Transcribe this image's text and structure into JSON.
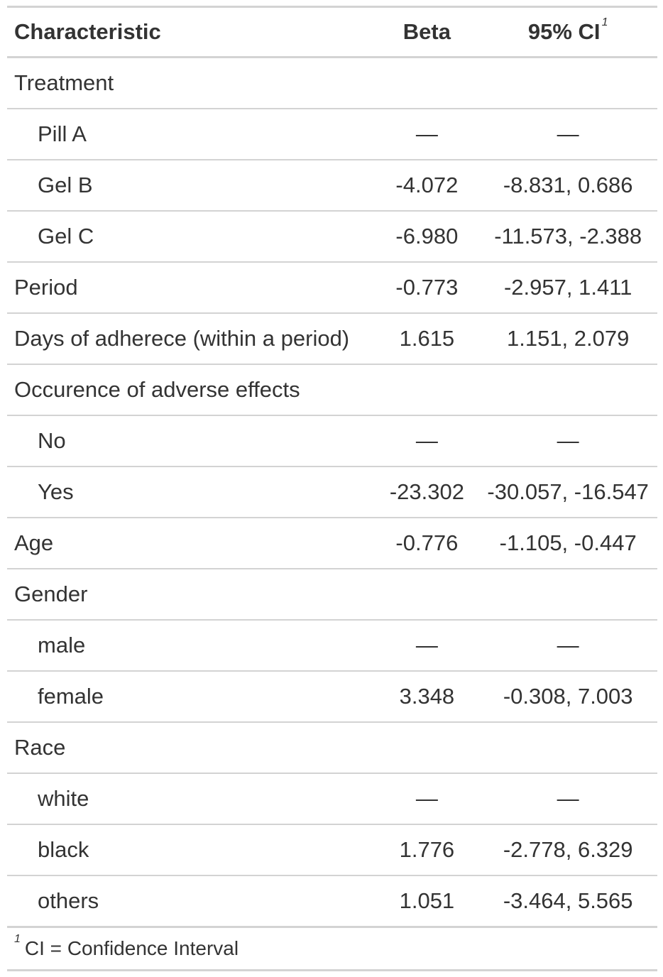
{
  "table": {
    "headers": {
      "characteristic": "Characteristic",
      "beta": "Beta",
      "ci": "95% CI",
      "ci_footnote_mark": "1"
    },
    "rows": [
      {
        "label": "Treatment",
        "beta": "",
        "ci": "",
        "indent": false
      },
      {
        "label": "Pill A",
        "beta": "—",
        "ci": "—",
        "indent": true
      },
      {
        "label": "Gel B",
        "beta": "-4.072",
        "ci": "-8.831, 0.686",
        "indent": true
      },
      {
        "label": "Gel C",
        "beta": "-6.980",
        "ci": "-11.573, -2.388",
        "indent": true
      },
      {
        "label": "Period",
        "beta": "-0.773",
        "ci": "-2.957, 1.411",
        "indent": false
      },
      {
        "label": "Days of adherece (within a period)",
        "beta": "1.615",
        "ci": "1.151, 2.079",
        "indent": false
      },
      {
        "label": "Occurence of adverse effects",
        "beta": "",
        "ci": "",
        "indent": false
      },
      {
        "label": "No",
        "beta": "—",
        "ci": "—",
        "indent": true
      },
      {
        "label": "Yes",
        "beta": "-23.302",
        "ci": "-30.057, -16.547",
        "indent": true
      },
      {
        "label": "Age",
        "beta": "-0.776",
        "ci": "-1.105, -0.447",
        "indent": false
      },
      {
        "label": "Gender",
        "beta": "",
        "ci": "",
        "indent": false
      },
      {
        "label": "male",
        "beta": "—",
        "ci": "—",
        "indent": true
      },
      {
        "label": "female",
        "beta": "3.348",
        "ci": "-0.308, 7.003",
        "indent": true
      },
      {
        "label": "Race",
        "beta": "",
        "ci": "",
        "indent": false
      },
      {
        "label": "white",
        "beta": "—",
        "ci": "—",
        "indent": true
      },
      {
        "label": "black",
        "beta": "1.776",
        "ci": "-2.778, 6.329",
        "indent": true
      },
      {
        "label": "others",
        "beta": "1.051",
        "ci": "-3.464, 5.565",
        "indent": true
      }
    ],
    "footnote": {
      "mark": "1",
      "text": "CI = Confidence Interval"
    }
  }
}
